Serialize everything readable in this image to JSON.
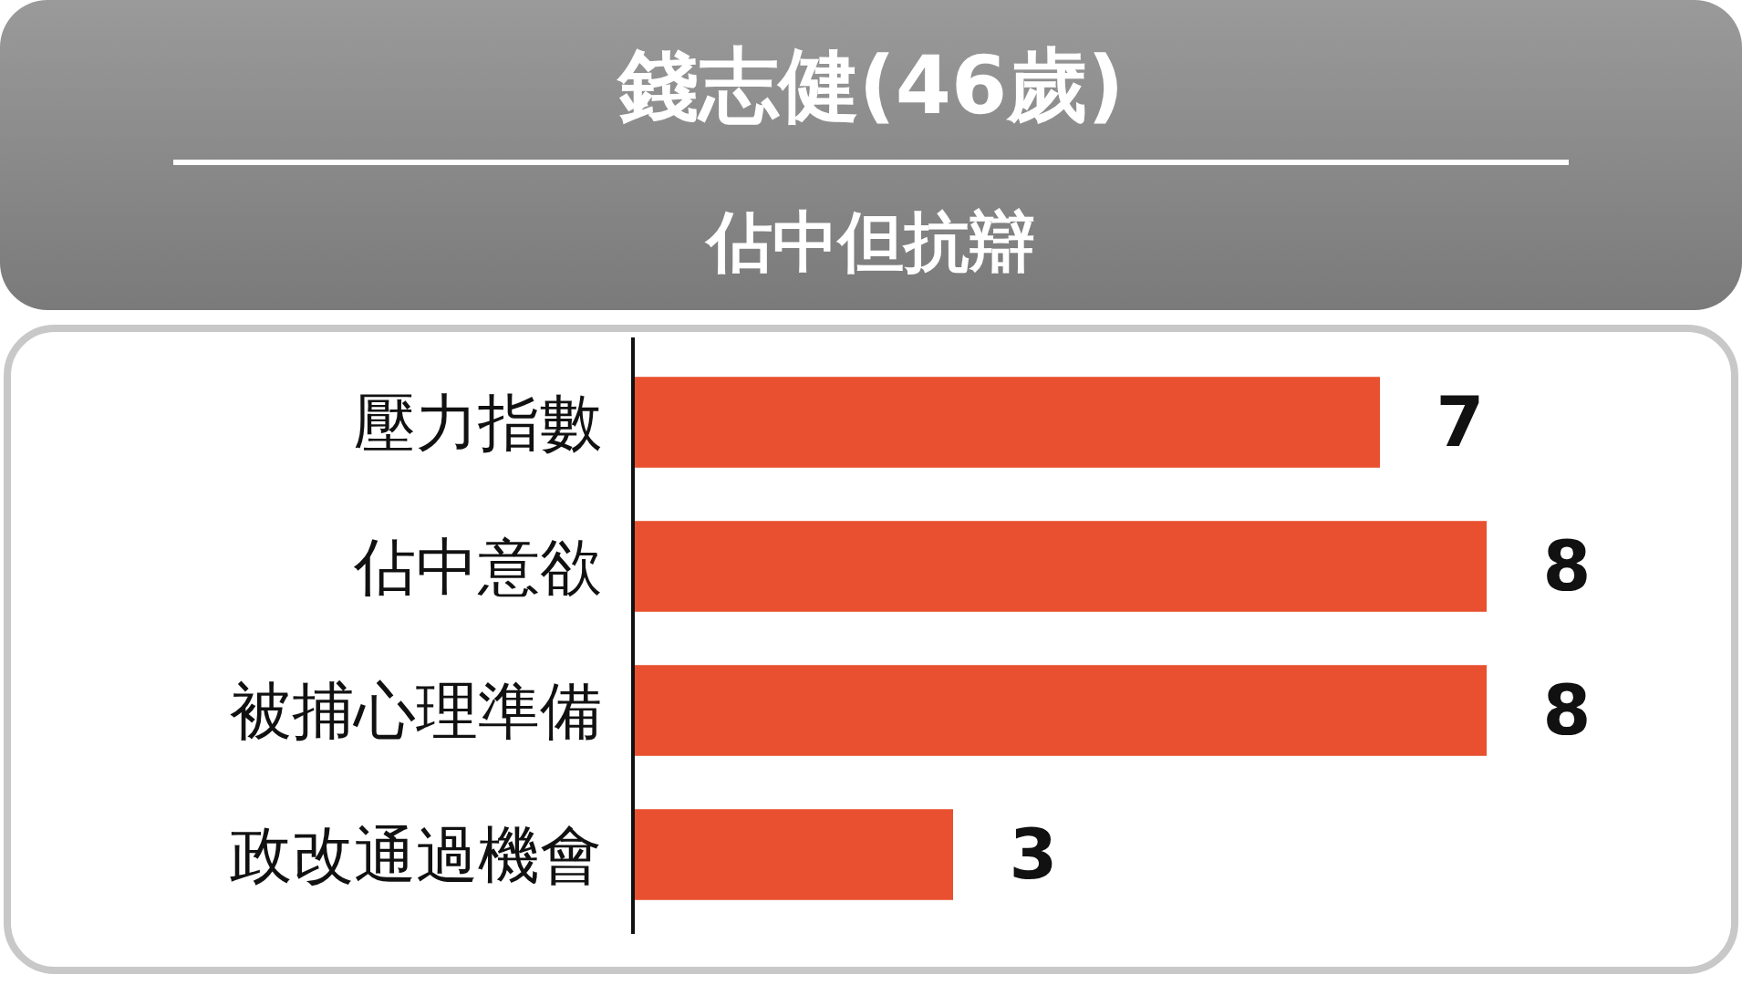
{
  "chart_data": {
    "type": "bar",
    "orientation": "horizontal",
    "title": "錢志健(46歲)",
    "subtitle": "佔中但抗辯",
    "categories": [
      "壓力指數",
      "佔中意欲",
      "被捕心理準備",
      "政改通過機會"
    ],
    "values": [
      7,
      8,
      8,
      3
    ],
    "color": "#e8502f",
    "data_labels": true
  }
}
